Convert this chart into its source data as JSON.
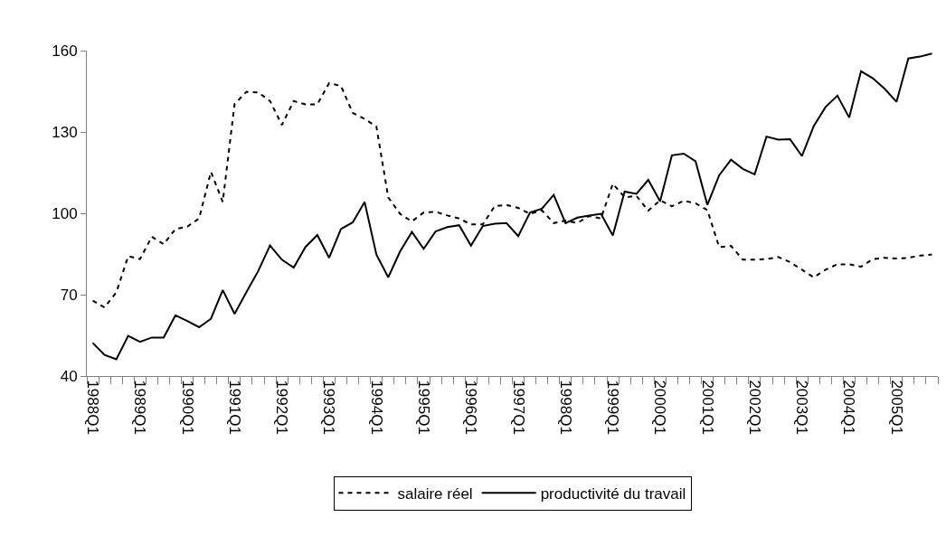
{
  "chart_data": {
    "type": "line",
    "categories": [
      "1988Q1",
      null,
      null,
      null,
      "1989Q1",
      null,
      null,
      null,
      "1990Q1",
      null,
      null,
      null,
      "1991Q1",
      null,
      null,
      null,
      "1992Q1",
      null,
      null,
      null,
      "1993Q1",
      null,
      null,
      null,
      "1994Q1",
      null,
      null,
      null,
      "1995Q1",
      null,
      null,
      null,
      "1996Q1",
      null,
      null,
      null,
      "1997Q1",
      null,
      null,
      null,
      "1998Q1",
      null,
      null,
      null,
      "1999Q1",
      null,
      null,
      null,
      "2000Q1",
      null,
      null,
      null,
      "2001Q1",
      null,
      null,
      null,
      "2002Q1",
      null,
      null,
      null,
      "2003Q1",
      null,
      null,
      null,
      "2004Q1",
      null,
      null,
      null,
      "2005Q1",
      null,
      null,
      null
    ],
    "series": [
      {
        "name": "salaire réel",
        "color": "#000000",
        "line_style": "dashed",
        "values": [
          67.8,
          65.3,
          70.9,
          84.2,
          83.1,
          91.4,
          88.6,
          94.2,
          95.1,
          98.1,
          115.3,
          104.2,
          140.3,
          144.8,
          144.6,
          141.4,
          132.6,
          141.4,
          140.2,
          140.2,
          148,
          147,
          137,
          134.8,
          132,
          105.9,
          99.8,
          97,
          100.3,
          100.6,
          99.2,
          98.1,
          95.9,
          95.9,
          102.6,
          103.1,
          102,
          99.8,
          101.1,
          96.4,
          97.3,
          96.4,
          99,
          98.1,
          110.9,
          105.9,
          106.4,
          101,
          104.8,
          102.6,
          104.6,
          103.7,
          101.2,
          87.5,
          88,
          82.9,
          82.9,
          83.1,
          83.9,
          82,
          79.2,
          76.4,
          79.2,
          81.2,
          81.2,
          80.3,
          83.1,
          83.6,
          83.3,
          83.6,
          84.4,
          84.8
        ]
      },
      {
        "name": "productivité du travail",
        "color": "#000000",
        "line_style": "solid",
        "values": [
          52.2,
          47.8,
          46.2,
          54.8,
          52.6,
          54.2,
          54.2,
          62.4,
          60.3,
          58,
          61.1,
          71.7,
          62.9,
          70.9,
          78.7,
          88.1,
          82.9,
          80,
          87.6,
          92,
          83.6,
          94.2,
          96.7,
          104.2,
          84.8,
          76.4,
          85.9,
          93.1,
          86.9,
          93.3,
          94.9,
          95.6,
          88.1,
          95.3,
          96.2,
          96.4,
          91.6,
          100.3,
          101.7,
          106.8,
          96.4,
          98.4,
          99.2,
          99.8,
          91.8,
          108,
          107.2,
          112.3,
          104.4,
          121.4,
          122,
          119.2,
          103.1,
          114,
          119.8,
          116.4,
          114.4,
          128.3,
          127.2,
          127.3,
          121.1,
          132.2,
          139.2,
          143.4,
          135.3,
          152.4,
          149.8,
          145.9,
          141.1,
          157.1,
          157.8,
          158.9
        ]
      }
    ],
    "ylim": [
      40,
      160
    ],
    "yticks": [
      40,
      70,
      100,
      130,
      160
    ],
    "legend": "bottom",
    "marker": "none"
  }
}
